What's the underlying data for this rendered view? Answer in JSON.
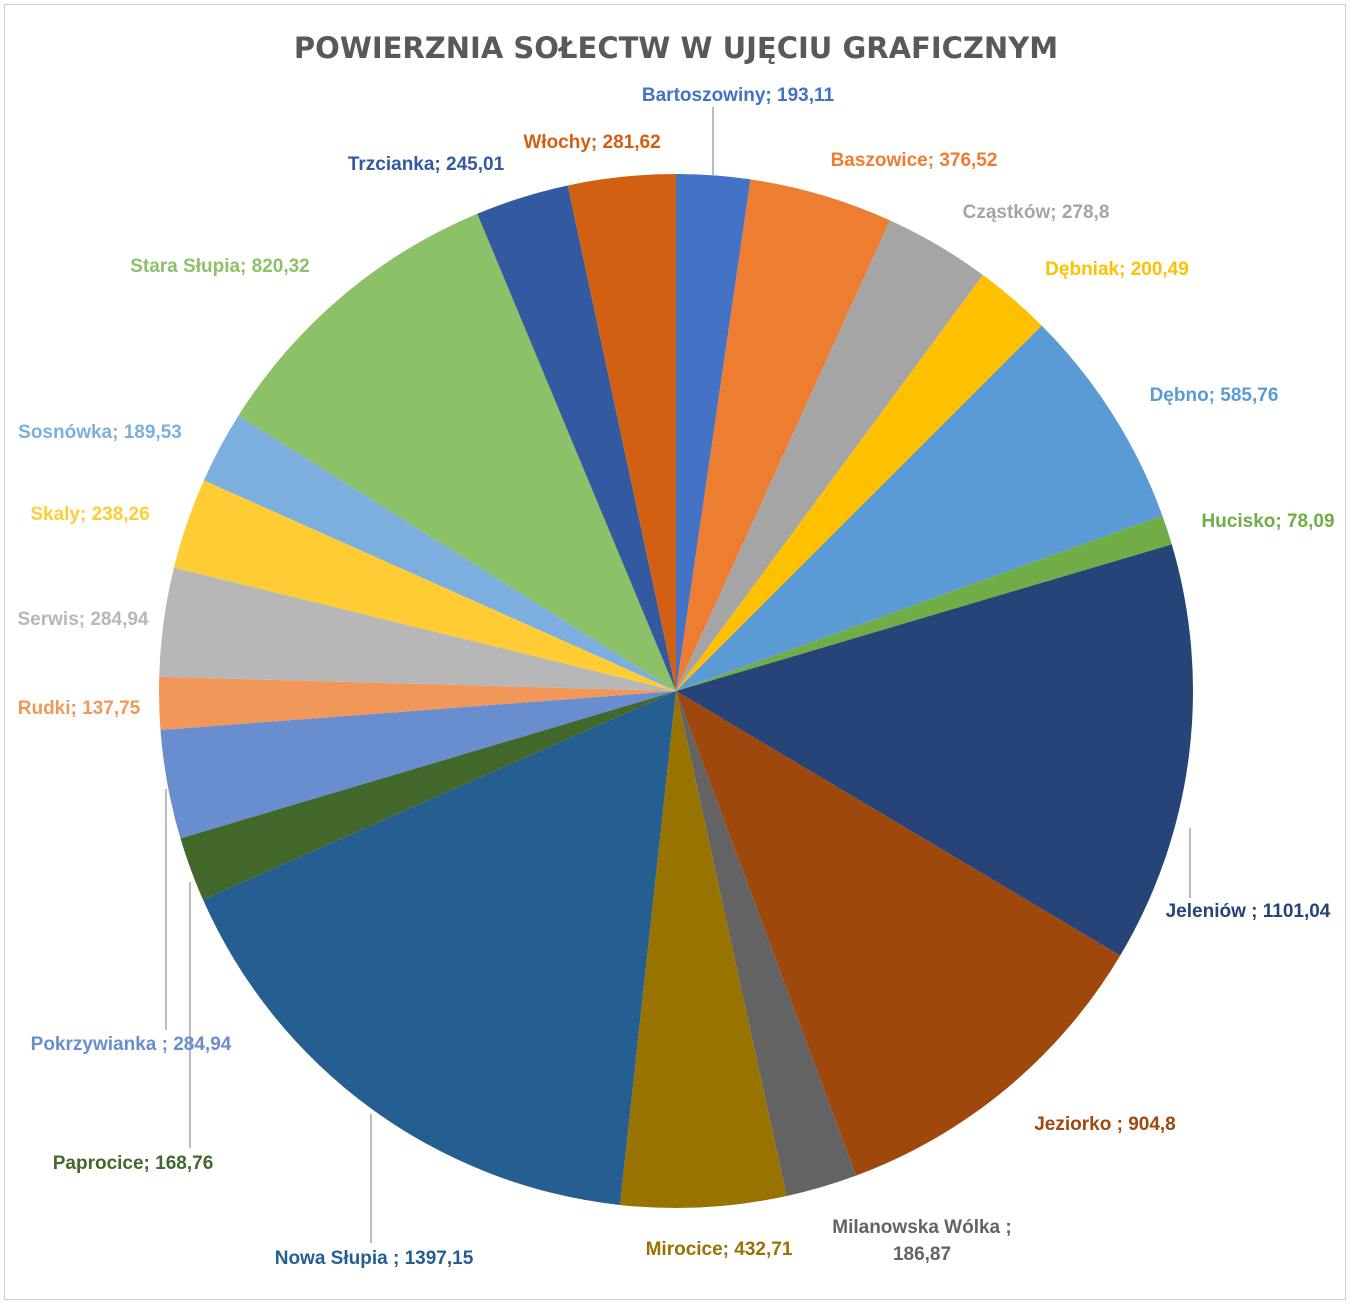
{
  "chart_data": {
    "type": "pie",
    "title": "POWIERZNIA SOŁECTW W UJĘCIU GRAFICZNYM",
    "slices": [
      {
        "label": "Bartoszowiny; 193,11",
        "name": "Bartoszowiny",
        "value": 193.11,
        "color": "#4472C4"
      },
      {
        "label": "Baszowice; 376,52",
        "name": "Baszowice",
        "value": 376.52,
        "color": "#ED7D31"
      },
      {
        "label": "Cząstków; 278,8",
        "name": "Cząstków",
        "value": 278.8,
        "color": "#A5A5A5"
      },
      {
        "label": "Dębniak; 200,49",
        "name": "Dębniak",
        "value": 200.49,
        "color": "#FFC000"
      },
      {
        "label": "Dębno; 585,76",
        "name": "Dębno",
        "value": 585.76,
        "color": "#5B9BD5"
      },
      {
        "label": "Hucisko; 78,09",
        "name": "Hucisko",
        "value": 78.09,
        "color": "#70AD47"
      },
      {
        "label": "Jeleniów ; 1101,04",
        "name": "Jeleniów",
        "value": 1101.04,
        "color": "#264478"
      },
      {
        "label": "Jeziorko ; 904,8",
        "name": "Jeziorko",
        "value": 904.8,
        "color": "#9E480E"
      },
      {
        "label": "Milanowska Wólka ; 186,87",
        "lines": [
          "Milanowska Wólka ;",
          "186,87"
        ],
        "name": "Milanowska Wólka",
        "value": 186.87,
        "color": "#636363"
      },
      {
        "label": "Mirocice; 432,71",
        "name": "Mirocice",
        "value": 432.71,
        "color": "#997300"
      },
      {
        "label": "Nowa Słupia ; 1397,15",
        "name": "Nowa Słupia",
        "value": 1397.15,
        "color": "#255E91"
      },
      {
        "label": "Paprocice; 168,76",
        "name": "Paprocice",
        "value": 168.76,
        "color": "#43682B"
      },
      {
        "label": "Pokrzywianka ; 284,94",
        "name": "Pokrzywianka",
        "value": 284.94,
        "color": "#698ED0"
      },
      {
        "label": "Rudki; 137,75",
        "name": "Rudki",
        "value": 137.75,
        "color": "#F1975A"
      },
      {
        "label": "Serwis; 284,94",
        "name": "Serwis",
        "value": 284.94,
        "color": "#B7B7B7"
      },
      {
        "label": "Skaly; 238,26",
        "name": "Skaly",
        "value": 238.26,
        "color": "#FFCD33"
      },
      {
        "label": "Sosnówka; 189,53",
        "name": "Sosnówka",
        "value": 189.53,
        "color": "#7CAFDD"
      },
      {
        "label": "Stara Słupia; 820,32",
        "name": "Stara Słupia",
        "value": 820.32,
        "color": "#8CC168"
      },
      {
        "label": "Trzcianka; 245,01",
        "name": "Trzcianka",
        "value": 245.01,
        "color": "#335AA1"
      },
      {
        "label": "Włochy; 281,62",
        "name": "Włochy",
        "value": 281.62,
        "color": "#D26012"
      }
    ],
    "label_colors": {
      "Bartoszowiny": "#4472C4",
      "Baszowice": "#ED7D31",
      "Cząstków": "#A5A5A5",
      "Dębniak": "#FFC000",
      "Dębno": "#5B9BD5",
      "Hucisko": "#70AD47",
      "Jeleniów": "#264478",
      "Jeziorko": "#9E480E",
      "Milanowska Wólka": "#636363",
      "Mirocice": "#997300",
      "Nowa Słupia": "#255E91",
      "Paprocice": "#43682B",
      "Pokrzywianka": "#698ED0",
      "Rudki": "#F1975A",
      "Serwis": "#B7B7B7",
      "Skaly": "#FFCD33",
      "Sosnówka": "#7CAFDD",
      "Stara Słupia": "#8CC168",
      "Trzcianka": "#335AA1",
      "Włochy": "#D26012"
    },
    "legend": "none",
    "data_labels": "outside with leader lines"
  }
}
